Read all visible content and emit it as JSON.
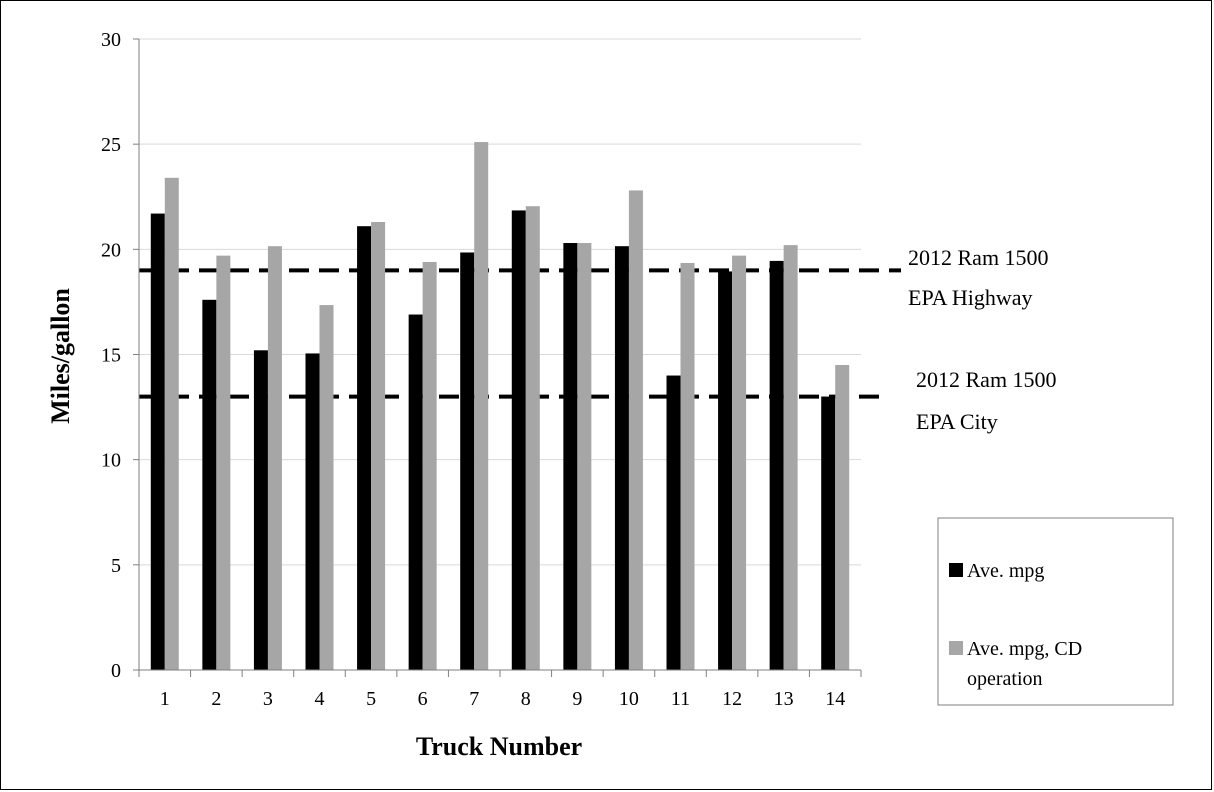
{
  "chart_data": {
    "type": "bar",
    "categories": [
      "1",
      "2",
      "3",
      "4",
      "5",
      "6",
      "7",
      "8",
      "9",
      "10",
      "11",
      "12",
      "13",
      "14"
    ],
    "series": [
      {
        "name": "Ave. mpg",
        "color": "#000000",
        "values": [
          21.7,
          17.6,
          15.2,
          15.05,
          21.1,
          16.9,
          19.85,
          21.85,
          20.3,
          20.15,
          14.0,
          18.95,
          19.45,
          13.0
        ]
      },
      {
        "name": "Ave. mpg, CD operation",
        "color": "#a6a6a6",
        "values": [
          23.4,
          19.7,
          20.15,
          17.35,
          21.3,
          19.4,
          25.1,
          22.05,
          20.3,
          22.8,
          19.35,
          19.7,
          20.2,
          14.5
        ]
      }
    ],
    "reference_lines": [
      {
        "value": 19,
        "label_line1": "2012 Ram 1500",
        "label_line2": "EPA Highway"
      },
      {
        "value": 13,
        "label_line1": "2012 Ram 1500",
        "label_line2": "EPA City"
      }
    ],
    "xlabel": "Truck Number",
    "ylabel": "Miles/gallon",
    "ylim": [
      0,
      30
    ],
    "yticks": [
      0,
      5,
      10,
      15,
      20,
      25,
      30
    ],
    "grid": true,
    "legend": {
      "placement": "right",
      "series_1_label": "Ave. mpg",
      "series_2_line1": "Ave. mpg, CD",
      "series_2_line2": "operation"
    }
  }
}
